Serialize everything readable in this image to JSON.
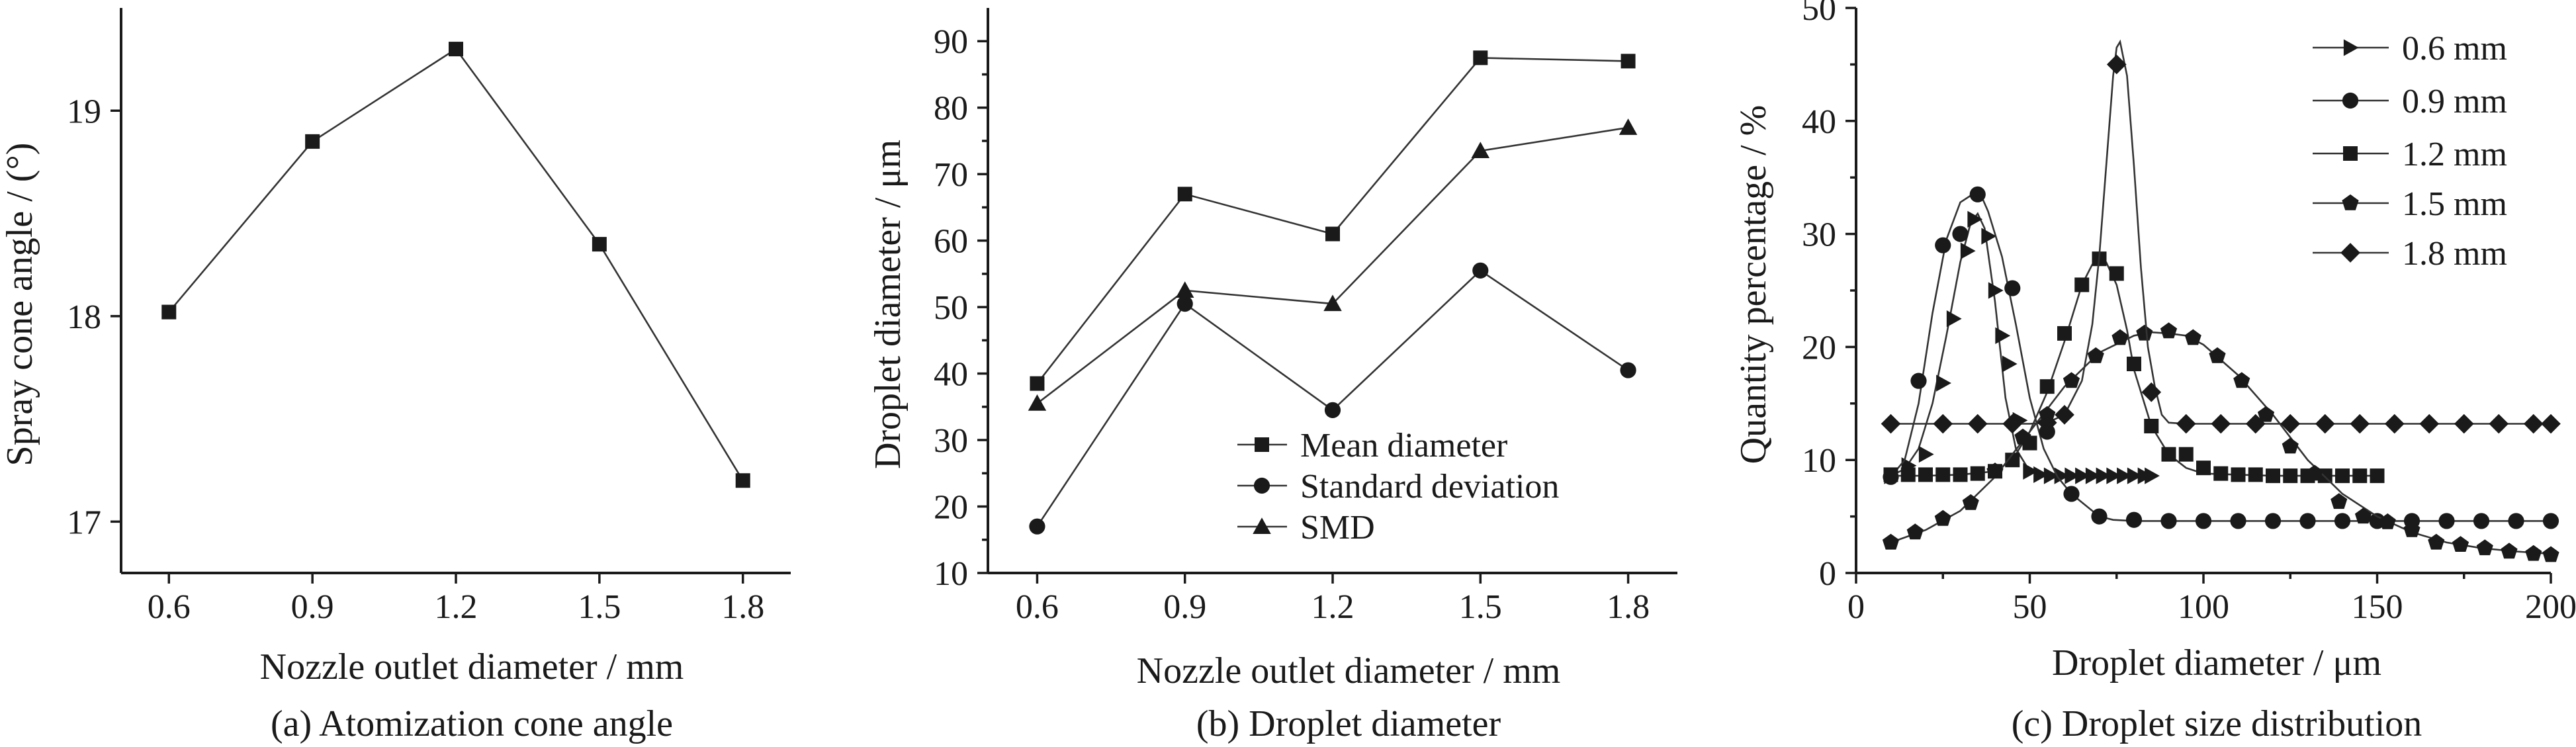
{
  "chart_data": [
    {
      "type": "line",
      "caption": "(a) Atomization cone angle",
      "xlabel": "Nozzle outlet diameter / mm",
      "ylabel": "Spray cone angle / (°)",
      "xlim": [
        0.5,
        1.9
      ],
      "ylim": [
        16.75,
        19.5
      ],
      "xticks": [
        0.6,
        0.9,
        1.2,
        1.5,
        1.8
      ],
      "xtick_labels": [
        "0.6",
        "0.9",
        "1.2",
        "1.5",
        "1.8"
      ],
      "yticks": [
        17,
        18,
        19
      ],
      "ytick_labels": [
        "17",
        "18",
        "19"
      ],
      "series": [
        {
          "marker": "square",
          "x": [
            0.6,
            0.9,
            1.2,
            1.5,
            1.8
          ],
          "y": [
            18.02,
            18.85,
            19.3,
            18.35,
            17.2
          ]
        }
      ]
    },
    {
      "type": "line",
      "caption": "(b) Droplet diameter",
      "xlabel": "Nozzle outlet diameter / mm",
      "ylabel": "Droplet diameter / μm",
      "xlim": [
        0.5,
        1.9
      ],
      "ylim": [
        10,
        95
      ],
      "xticks": [
        0.6,
        0.9,
        1.2,
        1.5,
        1.8
      ],
      "xtick_labels": [
        "0.6",
        "0.9",
        "1.2",
        "1.5",
        "1.8"
      ],
      "yticks": [
        10,
        20,
        30,
        40,
        50,
        60,
        70,
        80,
        90
      ],
      "ytick_labels": [
        "10",
        "20",
        "30",
        "40",
        "50",
        "60",
        "70",
        "80",
        "90"
      ],
      "legend_position": "bottom-right",
      "series": [
        {
          "name": "Mean diameter",
          "marker": "square",
          "x": [
            0.6,
            0.9,
            1.2,
            1.5,
            1.8
          ],
          "y": [
            38.5,
            67,
            61,
            87.5,
            87
          ]
        },
        {
          "name": "Standard deviation",
          "marker": "circle",
          "x": [
            0.6,
            0.9,
            1.2,
            1.5,
            1.8
          ],
          "y": [
            17,
            50.5,
            34.5,
            55.5,
            40.5
          ]
        },
        {
          "name": "SMD",
          "marker": "triangle",
          "x": [
            0.6,
            0.9,
            1.2,
            1.5,
            1.8
          ],
          "y": [
            35.5,
            52.5,
            50.5,
            73.5,
            77
          ]
        }
      ]
    },
    {
      "type": "line",
      "caption": "(c) Droplet size distribution",
      "xlabel": "Droplet diameter / μm",
      "ylabel": "Quantity percentage / %",
      "xlim": [
        0,
        200
      ],
      "ylim": [
        0,
        50
      ],
      "xticks": [
        0,
        50,
        100,
        150,
        200
      ],
      "xtick_labels": [
        "0",
        "50",
        "100",
        "150",
        "200"
      ],
      "yticks": [
        0,
        10,
        20,
        30,
        40,
        50
      ],
      "ytick_labels": [
        "0",
        "10",
        "20",
        "30",
        "40",
        "50"
      ],
      "legend_position": "top-right",
      "series": [
        {
          "name": "0.6 mm",
          "marker": "triangle-right",
          "curve_x": [
            10,
            14,
            18,
            22,
            26,
            30,
            33,
            35,
            37,
            40,
            43,
            46,
            50,
            54,
            58,
            62,
            66,
            70,
            74,
            78,
            82,
            85
          ],
          "curve_y": [
            8.6,
            9.2,
            11,
            15,
            21,
            27.5,
            31,
            31.8,
            30.5,
            24,
            15.5,
            11,
            9,
            8.6,
            8.6,
            8.6,
            8.6,
            8.6,
            8.6,
            8.6,
            8.6,
            8.6
          ],
          "x": [
            10,
            15,
            20,
            25,
            28,
            32,
            34,
            38,
            40,
            42,
            44,
            47,
            50,
            53,
            56,
            59,
            62,
            65,
            68,
            71,
            74,
            77,
            80,
            83,
            85
          ],
          "y": [
            8.6,
            9.5,
            10.5,
            16.8,
            22.5,
            28.5,
            31.3,
            29.8,
            25,
            21,
            18.5,
            13.5,
            9,
            8.7,
            8.6,
            8.6,
            8.6,
            8.6,
            8.6,
            8.6,
            8.6,
            8.6,
            8.6,
            8.6,
            8.6
          ]
        },
        {
          "name": "0.9 mm",
          "marker": "circle",
          "curve_x": [
            10,
            14,
            18,
            22,
            26,
            30,
            34,
            36,
            38,
            42,
            46,
            50,
            54,
            58,
            62,
            66,
            70,
            74,
            80,
            90,
            100,
            120,
            140,
            160,
            180,
            200
          ],
          "curve_y": [
            8.5,
            10,
            15,
            23,
            29.5,
            32.8,
            33.6,
            33.4,
            32,
            28,
            22,
            15.5,
            11,
            8.5,
            7,
            6,
            5,
            4.7,
            4.6,
            4.6,
            4.6,
            4.6,
            4.6,
            4.6,
            4.6,
            4.6
          ],
          "x": [
            10,
            18,
            25,
            30,
            35,
            45,
            55,
            62,
            70,
            80,
            90,
            100,
            110,
            120,
            130,
            140,
            150,
            160,
            170,
            180,
            190,
            200
          ],
          "y": [
            8.5,
            17,
            29,
            30,
            33.5,
            25.2,
            12.5,
            7,
            5,
            4.7,
            4.6,
            4.6,
            4.6,
            4.6,
            4.6,
            4.6,
            4.6,
            4.6,
            4.6,
            4.6,
            4.6,
            4.6
          ]
        },
        {
          "name": "1.2 mm",
          "marker": "square",
          "curve_x": [
            10,
            20,
            30,
            40,
            45,
            50,
            55,
            60,
            65,
            68,
            70,
            72,
            75,
            78,
            80,
            85,
            90,
            95,
            100,
            110,
            120,
            130,
            140,
            150
          ],
          "curve_y": [
            8.6,
            8.6,
            8.7,
            9,
            10,
            12.5,
            16,
            20.5,
            25.5,
            27.3,
            27.8,
            27.5,
            25.5,
            21.5,
            18,
            13,
            10.5,
            9.3,
            8.8,
            8.7,
            8.6,
            8.6,
            8.6,
            8.6
          ],
          "x": [
            10,
            15,
            20,
            25,
            30,
            35,
            40,
            45,
            50,
            55,
            60,
            65,
            70,
            75,
            80,
            85,
            90,
            95,
            100,
            105,
            110,
            115,
            120,
            125,
            130,
            135,
            140,
            145,
            150
          ],
          "y": [
            8.7,
            8.7,
            8.7,
            8.7,
            8.7,
            8.8,
            9,
            10,
            11.5,
            16.5,
            21.2,
            25.5,
            27.8,
            26.5,
            18.5,
            13,
            10.5,
            10.5,
            9.3,
            8.8,
            8.7,
            8.7,
            8.6,
            8.6,
            8.6,
            8.6,
            8.6,
            8.6,
            8.6
          ]
        },
        {
          "name": "1.5 mm",
          "marker": "pentagon",
          "curve_x": [
            10,
            20,
            30,
            40,
            50,
            60,
            70,
            80,
            85,
            90,
            95,
            100,
            110,
            120,
            130,
            140,
            150,
            160,
            170,
            180,
            190,
            200
          ],
          "curve_y": [
            2.7,
            3.8,
            5.5,
            8.5,
            12.5,
            16.5,
            19.5,
            21,
            21.3,
            21.2,
            21,
            20.2,
            17.5,
            14,
            10,
            7,
            5,
            3.6,
            2.7,
            2.2,
            1.9,
            1.7
          ],
          "x": [
            10,
            17,
            25,
            33,
            40,
            48,
            55,
            62,
            69,
            76,
            83,
            90,
            97,
            104,
            111,
            118,
            125,
            132,
            139,
            146,
            153,
            160,
            167,
            174,
            181,
            188,
            195,
            200
          ],
          "y": [
            2.7,
            3.6,
            4.8,
            6.2,
            9,
            12,
            14,
            17,
            19.2,
            20.8,
            21.2,
            21.4,
            20.8,
            19.2,
            17,
            14,
            11.2,
            8.8,
            6.3,
            5,
            4.5,
            3.8,
            2.7,
            2.5,
            2.2,
            1.9,
            1.7,
            1.6
          ]
        },
        {
          "name": "1.8 mm",
          "marker": "diamond",
          "curve_x": [
            10,
            20,
            30,
            40,
            50,
            55,
            60,
            65,
            68,
            70,
            72,
            74,
            75,
            76,
            78,
            80,
            82,
            84,
            86,
            88,
            90,
            95,
            100,
            120,
            140,
            160,
            180,
            200
          ],
          "curve_y": [
            13.2,
            13.2,
            13.2,
            13.2,
            13.2,
            13.3,
            14,
            17,
            22,
            28,
            36,
            44,
            46.5,
            47,
            44,
            36,
            27,
            20,
            16.5,
            14,
            13.3,
            13.2,
            13.2,
            13.2,
            13.2,
            13.2,
            13.2,
            13.2
          ],
          "x": [
            10,
            25,
            35,
            45,
            55,
            60,
            75,
            85,
            95,
            105,
            115,
            125,
            135,
            145,
            155,
            165,
            175,
            185,
            195,
            200
          ],
          "y": [
            13.2,
            13.2,
            13.2,
            13.2,
            13.3,
            14,
            45,
            16,
            13.2,
            13.2,
            13.2,
            13.2,
            13.2,
            13.2,
            13.2,
            13.2,
            13.2,
            13.2,
            13.2,
            13.2
          ]
        }
      ]
    }
  ]
}
